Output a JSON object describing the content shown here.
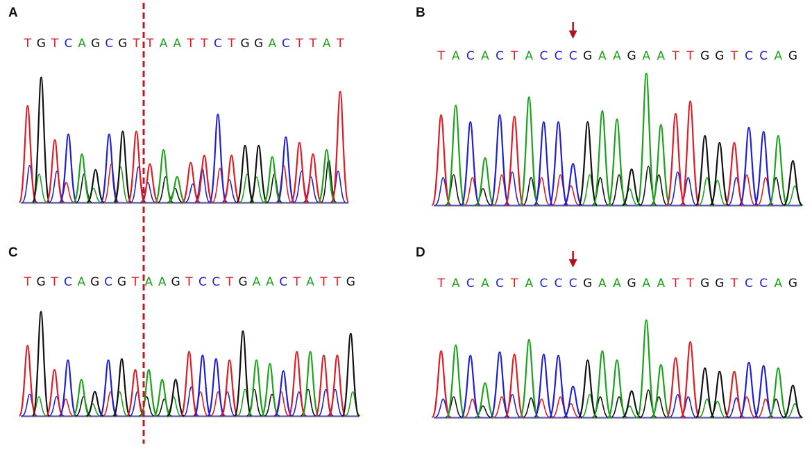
{
  "figure": {
    "colors": {
      "A": "#1aa31a",
      "C": "#1f1fd6",
      "G": "#111111",
      "T": "#e01b24",
      "marker": "#b3111b"
    },
    "panels": [
      {
        "id": "A",
        "label": "A",
        "sequence": "TGTCAGCGTTAATTCTGGACTTAT",
        "peaks": [
          0.68,
          0.88,
          0.44,
          0.48,
          0.34,
          0.23,
          0.48,
          0.5,
          0.5,
          0.27,
          0.37,
          0.18,
          0.28,
          0.33,
          0.62,
          0.33,
          0.4,
          0.4,
          0.32,
          0.46,
          0.42,
          0.34,
          0.37,
          0.78
        ],
        "overlay": [
          0.26,
          0.2,
          0.22,
          0.14,
          0.2,
          0.1,
          0.27,
          0.25,
          0.25,
          0.14,
          0.18,
          0.1,
          0.13,
          0.24,
          0.24,
          0.16,
          0.2,
          0.18,
          0.2,
          0.26,
          0.22,
          0.18,
          0.3,
          0.22
        ],
        "marker": null
      },
      {
        "id": "B",
        "label": "B",
        "sequence": "TACACTACCCGAAGAATTGGTCCAG",
        "peaks": [
          0.65,
          0.72,
          0.6,
          0.34,
          0.65,
          0.64,
          0.78,
          0.6,
          0.6,
          0.3,
          0.6,
          0.68,
          0.62,
          0.26,
          0.95,
          0.58,
          0.66,
          0.75,
          0.5,
          0.45,
          0.45,
          0.56,
          0.53,
          0.5,
          0.32
        ],
        "overlay": [
          0.2,
          0.22,
          0.2,
          0.12,
          0.22,
          0.24,
          0.2,
          0.2,
          0.22,
          0.14,
          0.22,
          0.2,
          0.22,
          0.12,
          0.28,
          0.22,
          0.24,
          0.2,
          0.2,
          0.18,
          0.2,
          0.22,
          0.2,
          0.2,
          0.14
        ],
        "marker": 9
      },
      {
        "id": "C",
        "label": "C",
        "sequence": "TGTCAGCGTAAGTCCTGAACTATTG",
        "peaks": [
          0.58,
          0.86,
          0.38,
          0.46,
          0.3,
          0.2,
          0.46,
          0.47,
          0.38,
          0.38,
          0.3,
          0.3,
          0.53,
          0.5,
          0.47,
          0.46,
          0.7,
          0.46,
          0.43,
          0.37,
          0.53,
          0.53,
          0.5,
          0.5,
          0.68
        ],
        "overlay": [
          0.18,
          0.16,
          0.16,
          0.14,
          0.16,
          0.1,
          0.2,
          0.2,
          0.2,
          0.16,
          0.14,
          0.16,
          0.24,
          0.2,
          0.2,
          0.2,
          0.22,
          0.22,
          0.18,
          0.2,
          0.2,
          0.22,
          0.22,
          0.22,
          0.2
        ],
        "marker": null
      },
      {
        "id": "D",
        "label": "D",
        "sequence": "TACACTACCCGAAGAATTGGTCCAG",
        "peaks": [
          0.58,
          0.63,
          0.54,
          0.3,
          0.57,
          0.55,
          0.68,
          0.55,
          0.54,
          0.27,
          0.5,
          0.58,
          0.5,
          0.23,
          0.85,
          0.46,
          0.52,
          0.66,
          0.43,
          0.4,
          0.4,
          0.48,
          0.45,
          0.43,
          0.28
        ],
        "overlay": [
          0.16,
          0.18,
          0.16,
          0.1,
          0.18,
          0.2,
          0.17,
          0.16,
          0.18,
          0.12,
          0.2,
          0.18,
          0.18,
          0.1,
          0.24,
          0.18,
          0.2,
          0.18,
          0.16,
          0.14,
          0.17,
          0.18,
          0.16,
          0.16,
          0.12
        ],
        "marker": 9
      }
    ]
  }
}
